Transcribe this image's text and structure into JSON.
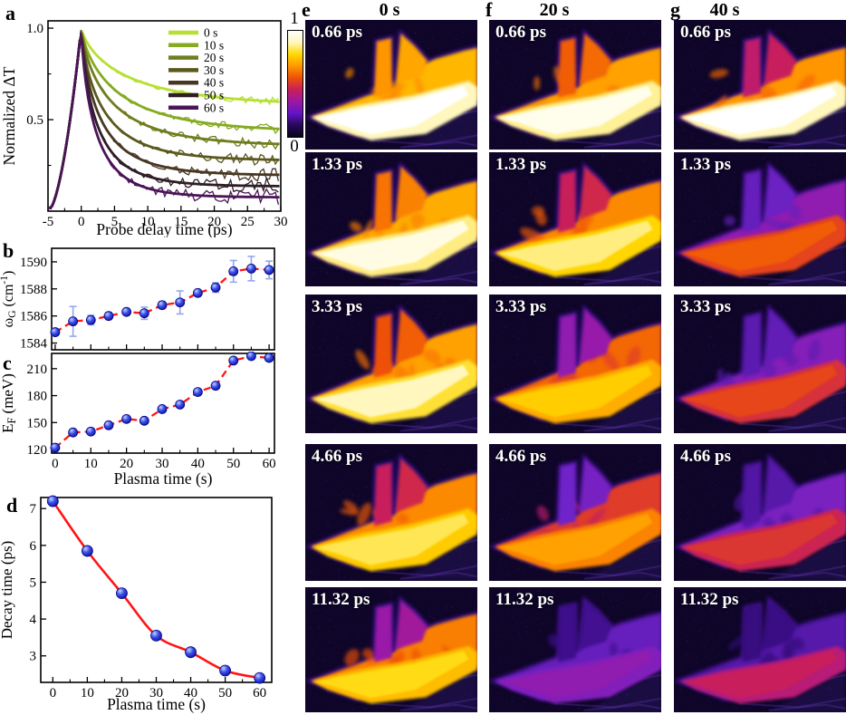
{
  "figure": {
    "panels": {
      "a": "a",
      "b": "b",
      "c": "c",
      "d": "d"
    }
  },
  "colorbar": {
    "top_label": "1",
    "bottom_label": "0",
    "colors": [
      "#ffffff",
      "#fff7be",
      "#ffd800",
      "#ff9600",
      "#ee5008",
      "#c81e5c",
      "#9b19a0",
      "#6414c8",
      "#28085a",
      "#08041a"
    ]
  },
  "chart_data": [
    {
      "panel": "a",
      "type": "line",
      "xlabel": "Probe delay time (ps)",
      "ylabel": "Normalized ΔT",
      "xlim": [
        -5,
        30
      ],
      "ylim": [
        0,
        1.04
      ],
      "xticks": [
        {
          "v": -5,
          "l": "-5"
        },
        {
          "v": 0,
          "l": "0"
        },
        {
          "v": 5,
          "l": "5"
        },
        {
          "v": 10,
          "l": "10"
        },
        {
          "v": 15,
          "l": "15"
        },
        {
          "v": 20,
          "l": "20"
        },
        {
          "v": 25,
          "l": "25"
        },
        {
          "v": 30,
          "l": "30"
        }
      ],
      "yticks": [
        {
          "v": 0.5,
          "l": "0.5"
        },
        {
          "v": 1.0,
          "l": "1.0"
        }
      ],
      "yminor": [
        0.25,
        0.75
      ],
      "xminor_step": 2.5,
      "legend_position": "top-right",
      "peak": {
        "x": 0,
        "y": 1.0
      },
      "model": "rise from 0.02 at -5 ps to peak 1.0 at 0 ps, then stretched exponential decay to plateau",
      "series": [
        {
          "name": "0 s",
          "color": "#b7e032",
          "tau_ps": 7.2,
          "plateau": 0.575
        },
        {
          "name": "10 s",
          "color": "#86aa21",
          "tau_ps": 5.85,
          "plateau": 0.43
        },
        {
          "name": "20 s",
          "color": "#6f7d1e",
          "tau_ps": 4.7,
          "plateau": 0.355
        },
        {
          "name": "30 s",
          "color": "#5a591d",
          "tau_ps": 3.55,
          "plateau": 0.275
        },
        {
          "name": "40 s",
          "color": "#473722",
          "tau_ps": 3.1,
          "plateau": 0.195
        },
        {
          "name": "50 s",
          "color": "#2f1e25",
          "tau_ps": 2.6,
          "plateau": 0.135
        },
        {
          "name": "60 s",
          "color": "#4a1557",
          "tau_ps": 2.4,
          "plateau": 0.075
        }
      ]
    },
    {
      "panel": "b",
      "type": "scatter",
      "ylabel_parts": [
        {
          "t": "ω"
        },
        {
          "t": "G",
          "sub": true
        },
        {
          "t": " (cm"
        },
        {
          "t": "-1",
          "sup": true
        },
        {
          "t": ")"
        }
      ],
      "x": [
        0,
        5,
        10,
        15,
        20,
        25,
        30,
        35,
        40,
        45,
        50,
        55,
        60
      ],
      "y": [
        1584.8,
        1585.6,
        1585.7,
        1586.0,
        1586.3,
        1586.2,
        1586.8,
        1587.0,
        1587.7,
        1588.1,
        1589.3,
        1589.5,
        1589.4
      ],
      "yerr": [
        0.25,
        1.1,
        0.35,
        0.25,
        0.2,
        0.45,
        0.25,
        0.85,
        0.2,
        0.35,
        0.8,
        0.9,
        0.65
      ],
      "xlim": [
        -1,
        61.5
      ],
      "ylim": [
        1583.5,
        1591
      ],
      "yticks": [
        {
          "v": 1584,
          "l": "1584"
        },
        {
          "v": 1586,
          "l": "1586"
        },
        {
          "v": 1588,
          "l": "1588"
        },
        {
          "v": 1590,
          "l": "1590"
        }
      ],
      "xticks": [
        {
          "v": 0
        },
        {
          "v": 10
        },
        {
          "v": 20
        },
        {
          "v": 30
        },
        {
          "v": 40
        },
        {
          "v": 50
        },
        {
          "v": 60
        }
      ],
      "xminor": [
        5,
        15,
        25,
        35,
        45,
        55
      ],
      "x_tick_labels_visible": false,
      "line_color": "#ff1515",
      "line_style": "dashed",
      "marker_color": "#2233cc",
      "errorbar_color": "#93a7ee"
    },
    {
      "panel": "c",
      "type": "scatter",
      "xlabel": "Plasma time (s)",
      "ylabel_parts": [
        {
          "t": "E"
        },
        {
          "t": "F",
          "sub": true
        },
        {
          "t": " (meV)"
        }
      ],
      "x": [
        0,
        5,
        10,
        15,
        20,
        25,
        30,
        35,
        40,
        45,
        50,
        55,
        60
      ],
      "y": [
        122,
        139,
        140,
        147,
        154,
        152,
        165,
        170,
        184,
        191,
        219,
        224,
        222
      ],
      "xlim": [
        -1,
        61.5
      ],
      "ylim": [
        116,
        227
      ],
      "yticks": [
        {
          "v": 120,
          "l": "120"
        },
        {
          "v": 150,
          "l": "150"
        },
        {
          "v": 180,
          "l": "180"
        },
        {
          "v": 210,
          "l": "210"
        }
      ],
      "xticks": [
        {
          "v": 0,
          "l": "0"
        },
        {
          "v": 10,
          "l": "10"
        },
        {
          "v": 20,
          "l": "20"
        },
        {
          "v": 30,
          "l": "30"
        },
        {
          "v": 40,
          "l": "40"
        },
        {
          "v": 50,
          "l": "50"
        },
        {
          "v": 60,
          "l": "60"
        }
      ],
      "xminor": [
        5,
        15,
        25,
        35,
        45,
        55
      ],
      "x_tick_labels_visible": true,
      "line_color": "#ff1515",
      "line_style": "dashed",
      "marker_color": "#2233cc"
    },
    {
      "panel": "d",
      "type": "scatter-spline",
      "xlabel": "Plasma time (s)",
      "ylabel": "Decay time (ps)",
      "x": [
        0,
        10,
        20,
        30,
        40,
        50,
        60
      ],
      "y": [
        7.2,
        5.85,
        4.7,
        3.55,
        3.1,
        2.6,
        2.4
      ],
      "xlim": [
        -3.5,
        63.5
      ],
      "ylim": [
        2.28,
        7.3
      ],
      "yticks": [
        {
          "v": 3,
          "l": "3"
        },
        {
          "v": 4,
          "l": "4"
        },
        {
          "v": 5,
          "l": "5"
        },
        {
          "v": 6,
          "l": "6"
        },
        {
          "v": 7,
          "l": "7"
        }
      ],
      "xticks": [
        {
          "v": 0,
          "l": "0"
        },
        {
          "v": 10,
          "l": "10"
        },
        {
          "v": 20,
          "l": "20"
        },
        {
          "v": 30,
          "l": "30"
        },
        {
          "v": 40,
          "l": "40"
        },
        {
          "v": 50,
          "l": "50"
        },
        {
          "v": 60,
          "l": "60"
        }
      ],
      "xminor": [
        5,
        15,
        25,
        35,
        45,
        55
      ],
      "x_tick_labels_visible": true,
      "line_color": "#ff1515",
      "line_style": "solid",
      "marker_color": "#2233cc"
    }
  ],
  "maps": {
    "value_scale": {
      "max": "1",
      "min": "0"
    },
    "columns": [
      {
        "panel": "e",
        "header": "0 s",
        "frames": [
          {
            "label": "0.66 ps",
            "body": 0.78,
            "prongs": 0.72,
            "band": 1.0
          },
          {
            "label": "1.33 ps",
            "body": 0.76,
            "prongs": 0.66,
            "band": 0.97
          },
          {
            "label": "3.33 ps",
            "body": 0.74,
            "prongs": 0.6,
            "band": 0.93
          },
          {
            "label": "4.66 ps",
            "body": 0.7,
            "prongs": 0.5,
            "band": 0.88
          },
          {
            "label": "11.32 ps",
            "body": 0.68,
            "prongs": 0.4,
            "band": 0.85
          }
        ]
      },
      {
        "panel": "f",
        "header": "20 s",
        "frames": [
          {
            "label": "0.66 ps",
            "body": 0.74,
            "prongs": 0.62,
            "band": 0.98
          },
          {
            "label": "1.33 ps",
            "body": 0.7,
            "prongs": 0.5,
            "band": 0.9
          },
          {
            "label": "3.33 ps",
            "body": 0.64,
            "prongs": 0.38,
            "band": 0.82
          },
          {
            "label": "4.66 ps",
            "body": 0.56,
            "prongs": 0.32,
            "band": 0.74
          },
          {
            "label": "11.32 ps",
            "body": 0.3,
            "prongs": 0.22,
            "band": 0.38
          }
        ]
      },
      {
        "panel": "g",
        "header": "40 s",
        "frames": [
          {
            "label": "0.66 ps",
            "body": 0.72,
            "prongs": 0.48,
            "band": 1.0
          },
          {
            "label": "1.33 ps",
            "body": 0.38,
            "prongs": 0.3,
            "band": 0.62
          },
          {
            "label": "3.33 ps",
            "body": 0.36,
            "prongs": 0.28,
            "band": 0.58
          },
          {
            "label": "4.66 ps",
            "body": 0.34,
            "prongs": 0.26,
            "band": 0.55
          },
          {
            "label": "11.32 ps",
            "body": 0.27,
            "prongs": 0.2,
            "band": 0.5
          }
        ]
      }
    ]
  }
}
